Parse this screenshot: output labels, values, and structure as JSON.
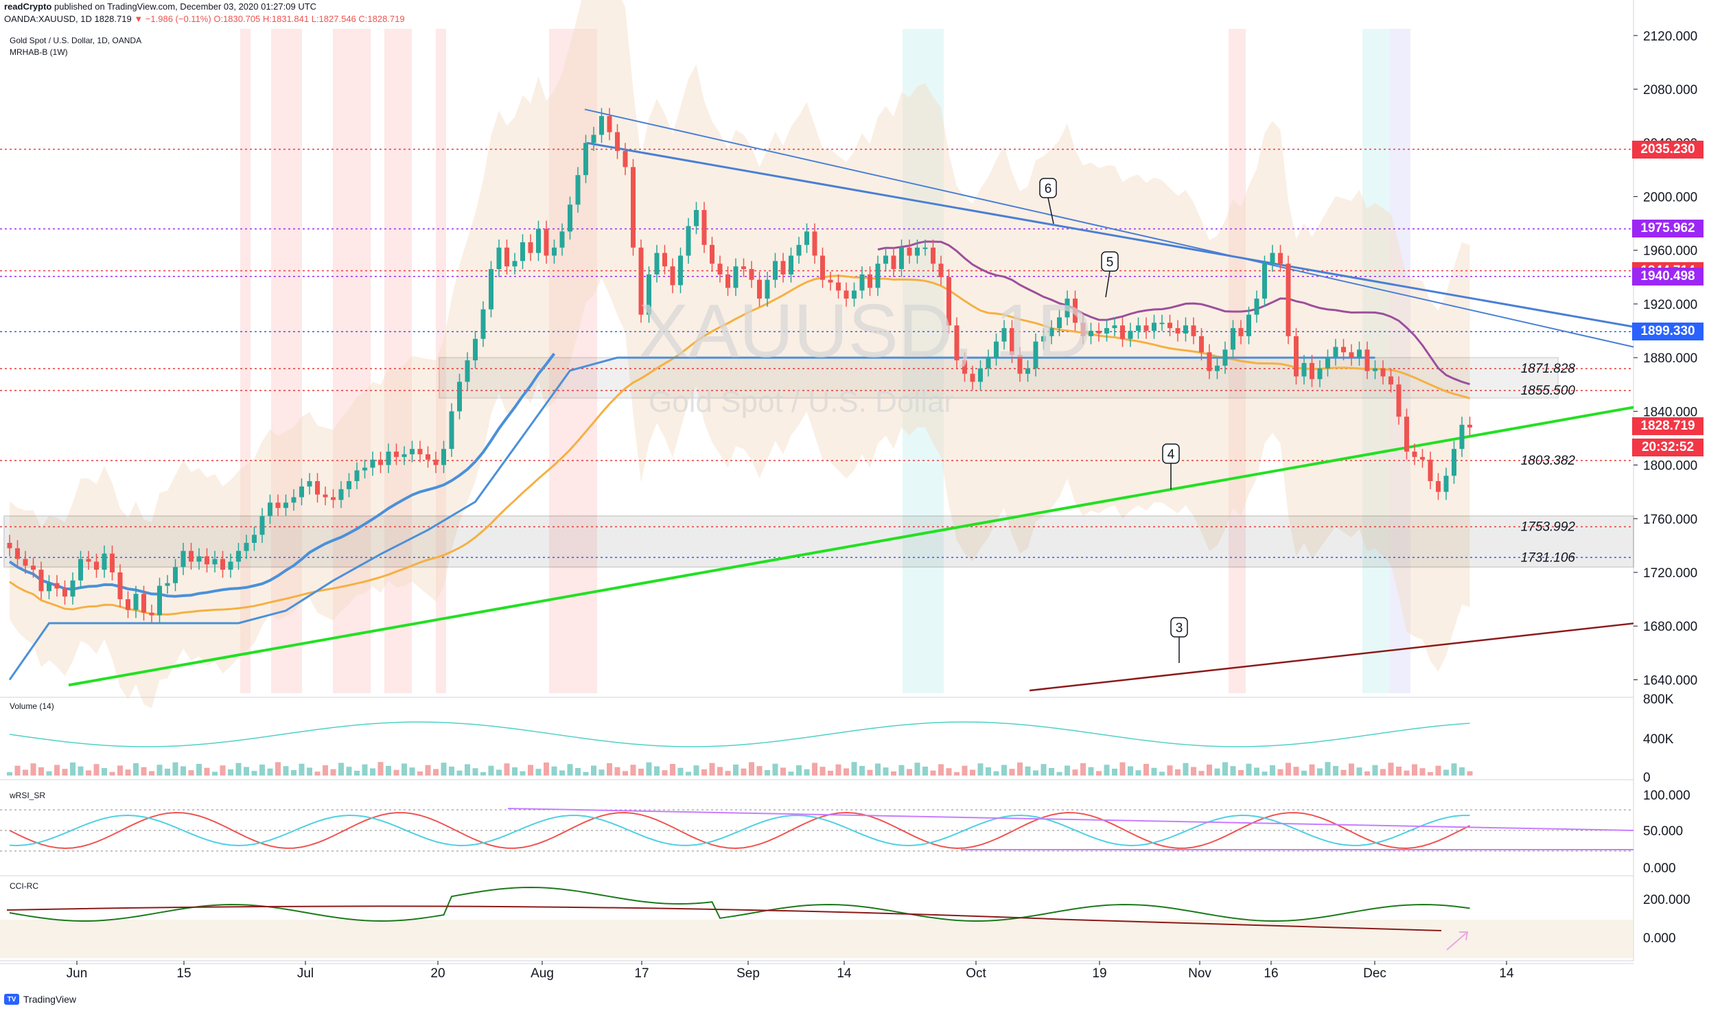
{
  "header": {
    "author": "readCrypto",
    "published": "published on TradingView.com, December 03, 2020 01:27:09 UTC",
    "symbol_line": "OANDA:XAUUSD, 1D  1828.719",
    "change": "▼ −1.986 (−0.11%)",
    "ohlc": "O:1830.705  H:1831.841  L:1827.546  C:1828.719"
  },
  "legend": {
    "instrument": "Gold Spot / U.S. Dollar, 1D, OANDA",
    "indicator": "MRHAB-B (1W)",
    "volume": "Volume (14)",
    "rsi": "wRSI_SR",
    "cci": "CCI-RC"
  },
  "watermark": {
    "symbol": "XAUUSD, 1D",
    "name": "Gold Spot / U.S. Dollar"
  },
  "footer": {
    "brand": "TradingView"
  },
  "colors": {
    "up": "#26a69a",
    "down": "#ef5350",
    "green_line": "#22e022",
    "blue_line": "#4a7fd4",
    "red_label": "#f23645",
    "purple_label": "#9c27f5",
    "blue_label": "#2962ff"
  },
  "chart_data": {
    "type": "candlestick",
    "price_axis": {
      "ticks": [
        "2120.000",
        "2080.000",
        "2040.000",
        "2000.000",
        "1960.000",
        "1920.000",
        "1880.000",
        "1840.000",
        "1800.000",
        "1760.000",
        "1720.000",
        "1680.000",
        "1640.000"
      ],
      "range": [
        1630,
        2125
      ]
    },
    "volume_axis": {
      "ticks": [
        "800K",
        "400K",
        "0"
      ]
    },
    "rsi_axis": {
      "ticks": [
        "100.000",
        "50.000",
        "0.000"
      ]
    },
    "cci_axis": {
      "ticks": [
        "200.000",
        "0.000"
      ]
    },
    "x_axis": {
      "ticks": [
        "Jun",
        "15",
        "Jul",
        "20",
        "Aug",
        "17",
        "Sep",
        "14",
        "Oct",
        "19",
        "Nov",
        "16",
        "Dec",
        "14"
      ]
    },
    "price_labels": [
      {
        "value": "2035.230",
        "price": 2035.23,
        "color": "#f23645"
      },
      {
        "value": "1975.962",
        "price": 1975.962,
        "color": "#9c27f5"
      },
      {
        "value": "1944.714",
        "price": 1944.714,
        "color": "#f23645"
      },
      {
        "value": "1940.498",
        "price": 1940.498,
        "color": "#9c27f5"
      },
      {
        "value": "1899.330",
        "price": 1899.33,
        "color": "#2962ff"
      },
      {
        "value": "1828.719",
        "price": 1828.719,
        "color": "#f23645"
      },
      {
        "value": "20:32:52",
        "price": 1813,
        "color": "#f23645"
      }
    ],
    "levels": [
      {
        "label": "1871.828",
        "price": 1871.828
      },
      {
        "label": "1855.500",
        "price": 1855.5
      },
      {
        "label": "1803.382",
        "price": 1803.382
      },
      {
        "label": "1753.992",
        "price": 1753.992
      },
      {
        "label": "1731.106",
        "price": 1731.106
      }
    ],
    "wave_labels": [
      "6",
      "5",
      "4",
      "3"
    ],
    "closes": [
      1738,
      1730,
      1725,
      1722,
      1706,
      1712,
      1708,
      1702,
      1714,
      1730,
      1728,
      1722,
      1734,
      1720,
      1700,
      1692,
      1704,
      1690,
      1688,
      1710,
      1712,
      1724,
      1736,
      1728,
      1732,
      1726,
      1730,
      1722,
      1728,
      1736,
      1742,
      1748,
      1762,
      1772,
      1768,
      1772,
      1776,
      1784,
      1788,
      1778,
      1776,
      1774,
      1782,
      1788,
      1796,
      1798,
      1804,
      1800,
      1810,
      1806,
      1808,
      1812,
      1808,
      1804,
      1800,
      1812,
      1840,
      1862,
      1878,
      1894,
      1916,
      1946,
      1962,
      1948,
      1952,
      1966,
      1958,
      1976,
      1956,
      1962,
      1974,
      1994,
      2016,
      2040,
      2046,
      2060,
      2048,
      2034,
      2022,
      1962,
      1912,
      1942,
      1958,
      1948,
      1934,
      1956,
      1978,
      1990,
      1964,
      1950,
      1942,
      1932,
      1948,
      1946,
      1938,
      1924,
      1938,
      1952,
      1942,
      1956,
      1964,
      1974,
      1956,
      1938,
      1936,
      1930,
      1924,
      1930,
      1942,
      1932,
      1950,
      1956,
      1946,
      1962,
      1956,
      1962,
      1962,
      1950,
      1940,
      1904,
      1878,
      1868,
      1862,
      1872,
      1880,
      1892,
      1902,
      1882,
      1868,
      1872,
      1892,
      1896,
      1902,
      1910,
      1924,
      1906,
      1896,
      1900,
      1898,
      1902,
      1904,
      1894,
      1900,
      1904,
      1900,
      1906,
      1906,
      1902,
      1898,
      1904,
      1896,
      1884,
      1870,
      1874,
      1886,
      1902,
      1896,
      1912,
      1924,
      1950,
      1958,
      1950,
      1896,
      1866,
      1876,
      1864,
      1872,
      1880,
      1888,
      1884,
      1880,
      1886,
      1870,
      1872,
      1866,
      1860,
      1836,
      1810,
      1806,
      1804,
      1788,
      1780,
      1792,
      1812,
      1830,
      1828
    ]
  }
}
